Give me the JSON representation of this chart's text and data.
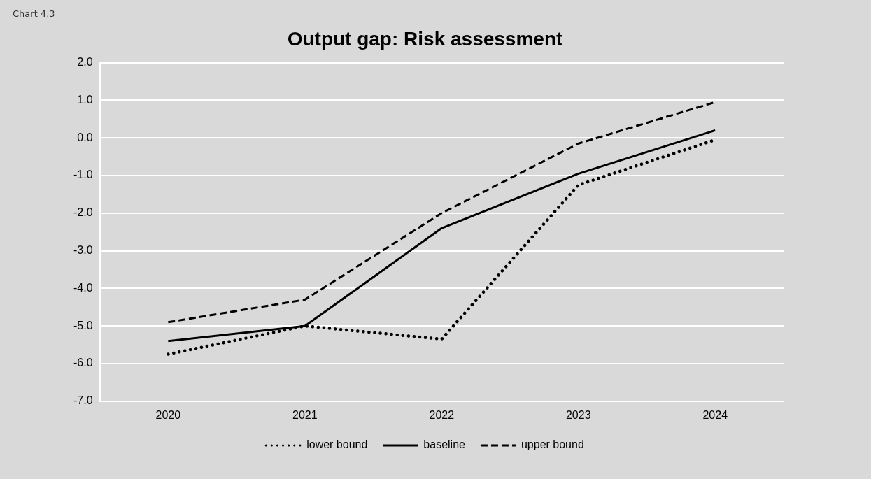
{
  "chart_data": {
    "type": "line",
    "title": "Output gap: Risk assessment",
    "annotations": [
      "Chart 4.3"
    ],
    "categories": [
      "2020",
      "2021",
      "2022",
      "2023",
      "2024"
    ],
    "series": [
      {
        "name": "lower bound",
        "color": "#000000",
        "line_style": "dotted",
        "values": [
          -5.75,
          -5.0,
          -5.35,
          -1.25,
          -0.05
        ]
      },
      {
        "name": "baseline",
        "color": "#000000",
        "line_style": "solid",
        "values": [
          -5.4,
          -5.0,
          -2.4,
          -0.95,
          0.2
        ]
      },
      {
        "name": "upper bound",
        "color": "#000000",
        "line_style": "dashed",
        "values": [
          -4.9,
          -4.3,
          -2.0,
          -0.15,
          0.95
        ]
      }
    ],
    "ylim": [
      -7,
      2
    ],
    "yticks": [
      {
        "value": 2,
        "label": "2.0"
      },
      {
        "value": 1,
        "label": "1.0"
      },
      {
        "value": 0,
        "label": "0.0"
      },
      {
        "value": -1,
        "label": "-1.0"
      },
      {
        "value": -2,
        "label": "-2.0"
      },
      {
        "value": -3,
        "label": "-3.0"
      },
      {
        "value": -4,
        "label": "-4.0"
      },
      {
        "value": -5,
        "label": "-5.0"
      },
      {
        "value": -6,
        "label": "-6.0"
      },
      {
        "value": -7,
        "label": "-7.0"
      }
    ],
    "grid": "y",
    "legend": "bottom",
    "marker": "none"
  }
}
